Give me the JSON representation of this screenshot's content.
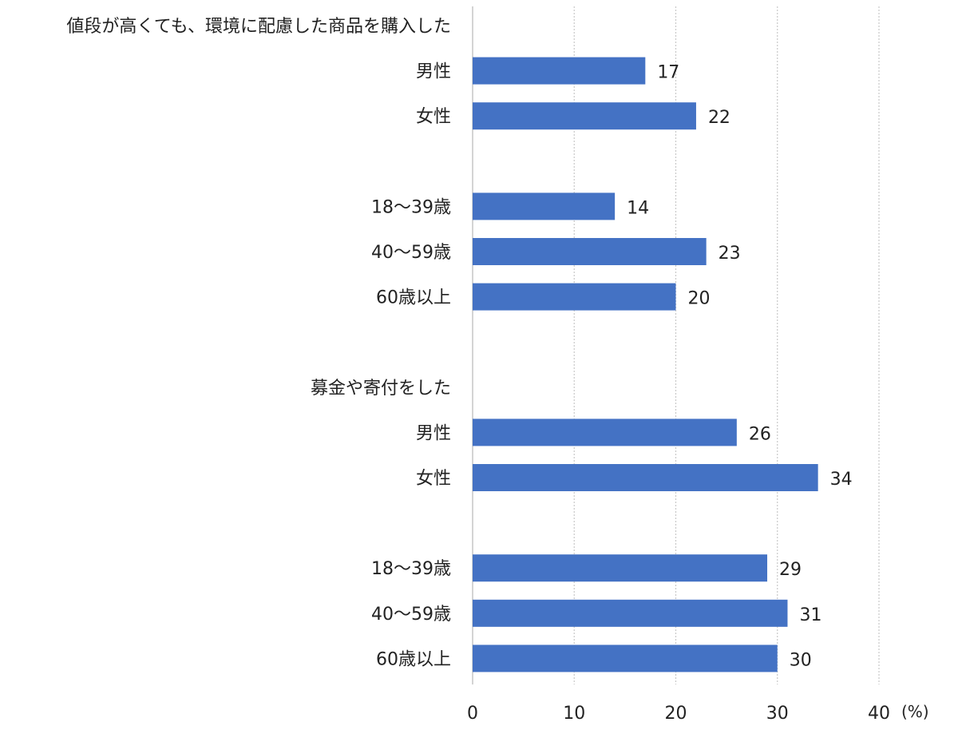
{
  "chart_data": {
    "type": "bar",
    "orientation": "horizontal",
    "xlim": [
      0,
      40
    ],
    "x_ticks": [
      "0",
      "10",
      "20",
      "30",
      "40"
    ],
    "x_unit": "(%)",
    "grid": true,
    "bar_color": "#4472C4",
    "rows": [
      {
        "label": "値段が高くても、環境に配慮した商品を購入した",
        "kind": "header"
      },
      {
        "label": "男性",
        "value": 17
      },
      {
        "label": "女性",
        "value": 22
      },
      {
        "kind": "spacer"
      },
      {
        "label": "18～39歳",
        "value": 14
      },
      {
        "label": "40～59歳",
        "value": 23
      },
      {
        "label": "60歳以上",
        "value": 20
      },
      {
        "kind": "spacer"
      },
      {
        "label": "募金や寄付をした",
        "kind": "header"
      },
      {
        "label": "男性",
        "value": 26
      },
      {
        "label": "女性",
        "value": 34
      },
      {
        "kind": "spacer"
      },
      {
        "label": "18～39歳",
        "value": 29
      },
      {
        "label": "40～59歳",
        "value": 31
      },
      {
        "label": "60歳以上",
        "value": 30
      }
    ]
  }
}
